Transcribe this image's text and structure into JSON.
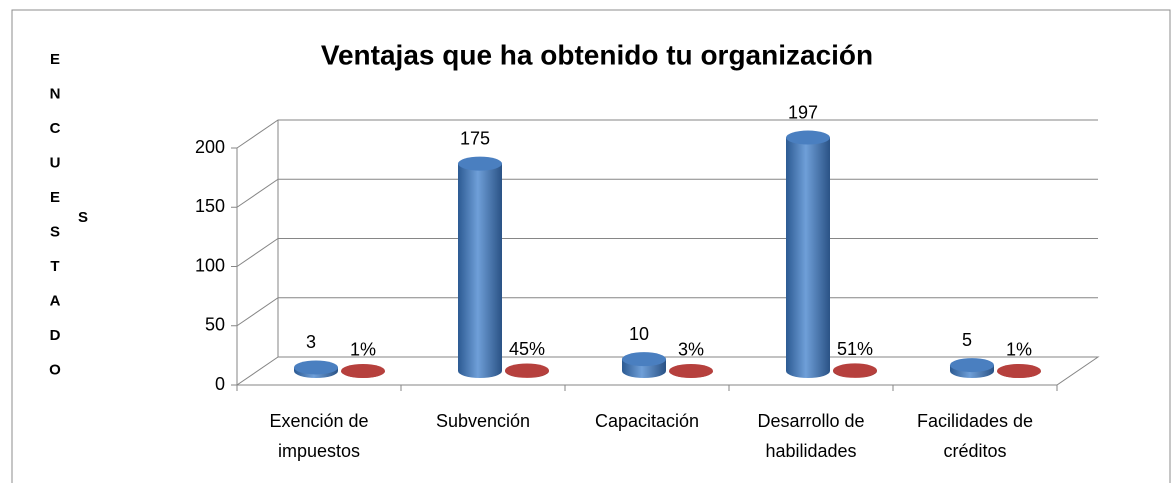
{
  "chart_data": {
    "type": "cylinder3d",
    "title": "Ventajas que ha obtenido tu organización",
    "y_label": "ENCUESTADOS",
    "categories": [
      "Exención de impuestos",
      "Subvención",
      "Capacitación",
      "Desarrollo de habilidades",
      "Facilidades de créditos"
    ],
    "series": [
      {
        "color": "#4f81bd",
        "values": [
          3,
          175,
          10,
          197,
          5
        ]
      },
      {
        "color": "#c0504d",
        "values": [
          0.01,
          0.45,
          0.03,
          0.51,
          0.01
        ],
        "value_labels": [
          "1%",
          "45%",
          "3%",
          "51%",
          "1%"
        ]
      }
    ],
    "ylim": [
      0,
      200
    ],
    "yticks": [
      0,
      50,
      100,
      150,
      200
    ],
    "grid": true
  }
}
